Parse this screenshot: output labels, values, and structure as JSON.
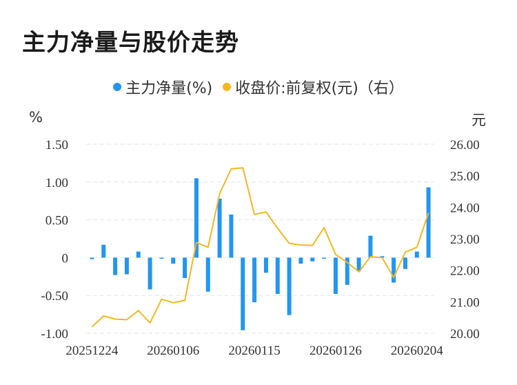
{
  "title": "主力净量与股价走势",
  "chart_data": {
    "type": "bar+line",
    "legend": [
      {
        "label": "主力净量(%)",
        "color": "#2196F3"
      },
      {
        "label": "收盘价:前复权(元)（右）",
        "color": "#F5B81C"
      }
    ],
    "left_unit": "%",
    "right_unit": "元",
    "left_axis": {
      "range": [
        -1.0,
        1.5
      ],
      "ticks": [
        "1.50",
        "1.00",
        "0.50",
        "0",
        "-0.50",
        "-1.00"
      ]
    },
    "right_axis": {
      "range": [
        20.0,
        26.0
      ],
      "ticks": [
        "26.00",
        "25.00",
        "24.00",
        "23.00",
        "22.00",
        "21.00",
        "20.00"
      ]
    },
    "x_tick_labels": [
      "20251224",
      "20260106",
      "20260115",
      "20260126",
      "20260204"
    ],
    "x_tick_index": [
      0,
      7,
      14,
      21,
      28
    ],
    "series": [
      {
        "name": "主力净量(%)",
        "type": "bar",
        "values": [
          -0.02,
          0.17,
          -0.23,
          -0.22,
          0.08,
          -0.42,
          0.0,
          -0.08,
          -0.27,
          1.05,
          -0.45,
          0.78,
          0.57,
          -0.96,
          -0.59,
          -0.2,
          -0.48,
          -0.76,
          -0.08,
          -0.05,
          -0.01,
          -0.48,
          -0.36,
          -0.18,
          0.29,
          0.02,
          -0.33,
          -0.15,
          0.08,
          0.93
        ]
      },
      {
        "name": "收盘价:前复权(元)（右）",
        "type": "line",
        "values": [
          20.2,
          20.55,
          20.45,
          20.43,
          20.72,
          20.33,
          21.08,
          20.97,
          21.04,
          22.88,
          22.73,
          24.43,
          25.22,
          25.25,
          23.77,
          23.85,
          23.33,
          22.85,
          22.8,
          22.79,
          23.35,
          22.5,
          22.25,
          21.95,
          22.43,
          22.4,
          21.77,
          22.57,
          22.73,
          23.82
        ]
      }
    ]
  }
}
